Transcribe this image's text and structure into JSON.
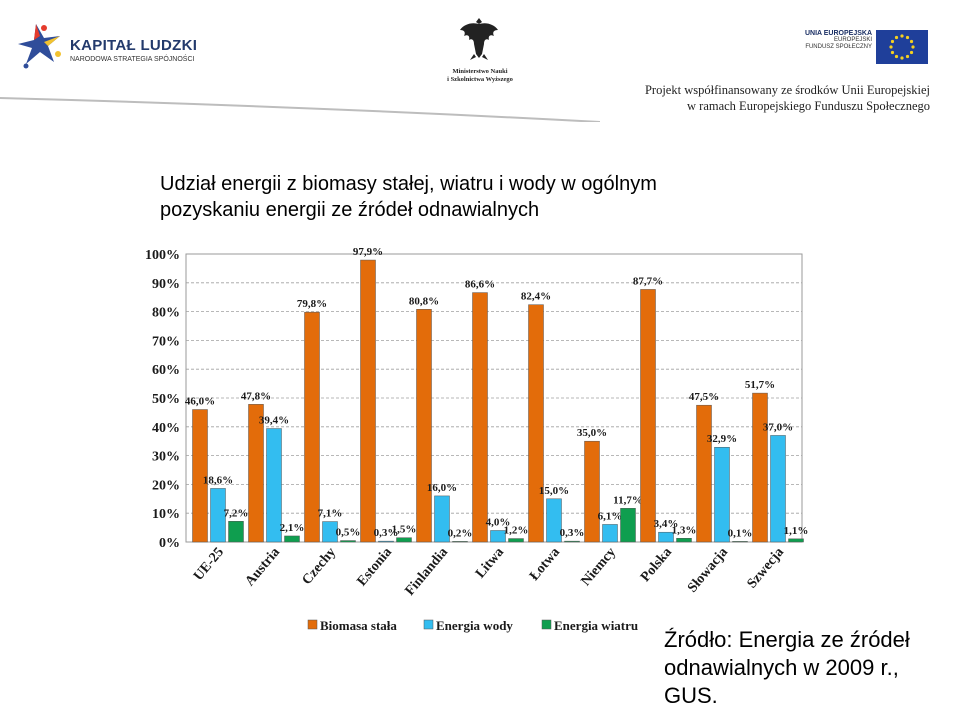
{
  "header": {
    "left_logo": {
      "title": "KAPITAŁ LUDZKI",
      "subtitle": "NARODOWA STRATEGIA SPÓJNOŚCI",
      "icon": "kapital-ludzki-star-icon"
    },
    "center_logo": {
      "line1": "Ministerstwo Nauki",
      "line2": "i Szkolnictwa Wyższego",
      "icon": "eagle-emblem-icon"
    },
    "right_logo": {
      "title": "UNIA EUROPEJSKA",
      "line1": "EUROPEJSKI",
      "line2": "FUNDUSZ SPOŁECZNY",
      "icon": "eu-flag-icon"
    },
    "project_note_line1": "Projekt współfinansowany ze środków Unii Europejskiej",
    "project_note_line2": "w ramach Europejskiego Funduszu Społecznego"
  },
  "slide": {
    "title_line1": "Udział energii z biomasy stałej, wiatru i wody w ogólnym",
    "title_line2": "pozyskaniu energii ze źródeł odnawialnych",
    "source_line1": "Źródło: Energia ze  źródeł",
    "source_line2": "odnawialnych w 2009 r.,",
    "source_line3": "GUS."
  },
  "chart_data": {
    "type": "bar",
    "categories": [
      "UE-25",
      "Austria",
      "Czechy",
      "Estonia",
      "Finlandia",
      "Litwa",
      "Łotwa",
      "Niemcy",
      "Polska",
      "Słowacja",
      "Szwecja"
    ],
    "series": [
      {
        "name": "Biomasa stała",
        "color": "#e36c0a",
        "values": [
          46.0,
          47.8,
          79.8,
          97.9,
          80.8,
          86.6,
          82.4,
          35.0,
          87.7,
          47.5,
          51.7
        ],
        "labels": [
          "46,0%",
          "47,8%",
          "79,8%",
          "97,9%",
          "80,8%",
          "86,6%",
          "82,4%",
          "35,0%",
          "87,7%",
          "47,5%",
          "51,7%"
        ]
      },
      {
        "name": "Energia wody",
        "color": "#33bdf0",
        "values": [
          18.6,
          39.4,
          7.1,
          0.3,
          16.0,
          4.0,
          15.0,
          6.1,
          3.4,
          32.9,
          37.0
        ],
        "labels": [
          "18,6%",
          "39,4%",
          "7,1%",
          "0,3%",
          "16,0%",
          "4,0%",
          "15,0%",
          "6,1%",
          "3,4%",
          "32,9%",
          "37,0%"
        ]
      },
      {
        "name": "Energia wiatru",
        "color": "#0f9e4f",
        "values": [
          7.2,
          2.1,
          0.5,
          1.5,
          0.2,
          1.2,
          0.3,
          11.7,
          1.3,
          0.1,
          1.1
        ],
        "labels": [
          "7,2%",
          "2,1%",
          "0,5%",
          "1,5%",
          "0,2%",
          "1,2%",
          "0,3%",
          "11,7%",
          "1,3%",
          "0,1%",
          "1,1%"
        ]
      }
    ],
    "yticks": [
      "0%",
      "10%",
      "20%",
      "30%",
      "40%",
      "50%",
      "60%",
      "70%",
      "80%",
      "90%",
      "100%"
    ],
    "ylim": [
      0,
      100
    ],
    "grid": true,
    "legend_position": "bottom"
  }
}
